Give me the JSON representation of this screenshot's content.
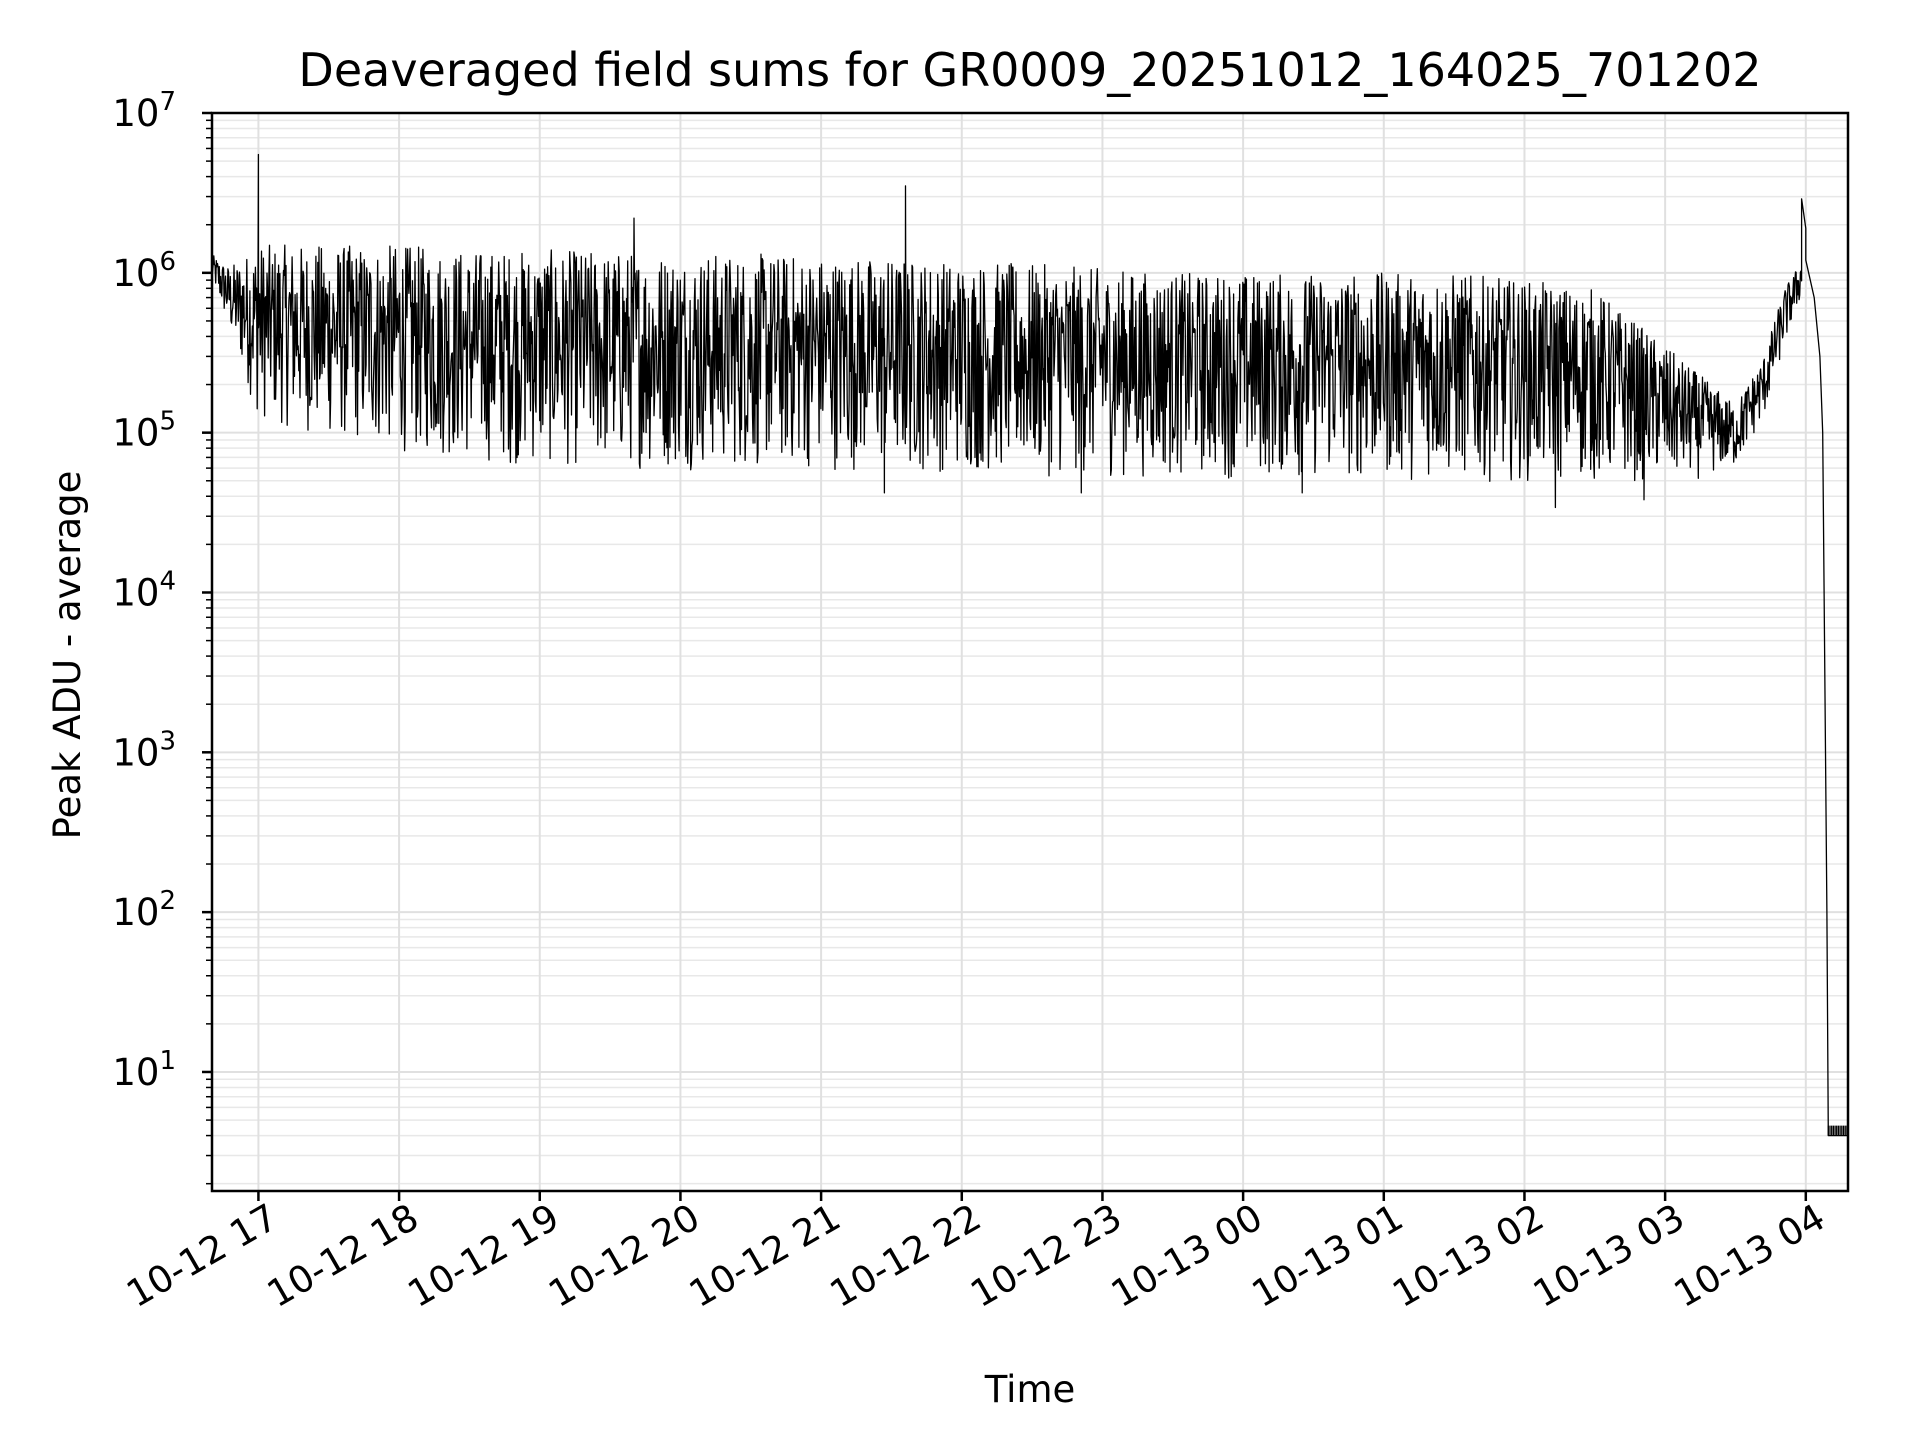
{
  "chart_data": {
    "type": "line",
    "title": "Deaveraged field sums for GR0009_20251012_164025_701202",
    "xlabel": "Time",
    "ylabel": "Peak ADU - average",
    "yscale": "log",
    "ylim": [
      1.8,
      10000000
    ],
    "xlim_hours": [
      16.67,
      28.3
    ],
    "grid": true,
    "line_color": "#000000",
    "y_ticks": [
      {
        "base": "10",
        "exp": "1",
        "value": 10
      },
      {
        "base": "10",
        "exp": "2",
        "value": 100
      },
      {
        "base": "10",
        "exp": "3",
        "value": 1000
      },
      {
        "base": "10",
        "exp": "4",
        "value": 10000
      },
      {
        "base": "10",
        "exp": "5",
        "value": 100000
      },
      {
        "base": "10",
        "exp": "6",
        "value": 1000000
      },
      {
        "base": "10",
        "exp": "7",
        "value": 10000000
      }
    ],
    "x_ticks": [
      {
        "label": "10-12 17",
        "hour": 17
      },
      {
        "label": "10-12 18",
        "hour": 18
      },
      {
        "label": "10-12 19",
        "hour": 19
      },
      {
        "label": "10-12 20",
        "hour": 20
      },
      {
        "label": "10-12 21",
        "hour": 21
      },
      {
        "label": "10-12 22",
        "hour": 22
      },
      {
        "label": "10-12 23",
        "hour": 23
      },
      {
        "label": "10-13 00",
        "hour": 24
      },
      {
        "label": "10-13 01",
        "hour": 25
      },
      {
        "label": "10-13 02",
        "hour": 26
      },
      {
        "label": "10-13 03",
        "hour": 27
      },
      {
        "label": "10-13 04",
        "hour": 28
      }
    ],
    "envelope": [
      {
        "hour": 16.67,
        "low": 900000,
        "high": 1300000
      },
      {
        "hour": 16.8,
        "low": 400000,
        "high": 1100000
      },
      {
        "hour": 17.0,
        "low": 120000,
        "high": 1500000
      },
      {
        "hour": 17.5,
        "low": 90000,
        "high": 1500000
      },
      {
        "hour": 18.0,
        "low": 75000,
        "high": 1500000
      },
      {
        "hour": 18.5,
        "low": 65000,
        "high": 1400000
      },
      {
        "hour": 19.0,
        "low": 60000,
        "high": 1400000
      },
      {
        "hour": 20.0,
        "low": 58000,
        "high": 1350000
      },
      {
        "hour": 21.0,
        "low": 58000,
        "high": 1300000
      },
      {
        "hour": 22.0,
        "low": 55000,
        "high": 1200000
      },
      {
        "hour": 22.8,
        "low": 52000,
        "high": 1100000
      },
      {
        "hour": 23.5,
        "low": 52000,
        "high": 1000000
      },
      {
        "hour": 24.5,
        "low": 50000,
        "high": 1000000
      },
      {
        "hour": 25.5,
        "low": 50000,
        "high": 1000000
      },
      {
        "hour": 26.5,
        "low": 48000,
        "high": 800000
      },
      {
        "hour": 27.2,
        "low": 50000,
        "high": 250000
      },
      {
        "hour": 27.5,
        "low": 60000,
        "high": 150000
      },
      {
        "hour": 27.7,
        "low": 120000,
        "high": 300000
      },
      {
        "hour": 27.85,
        "low": 350000,
        "high": 800000
      },
      {
        "hour": 27.97,
        "low": 700000,
        "high": 1200000
      }
    ],
    "spikes": [
      {
        "hour": 17.0,
        "value": 5500000
      },
      {
        "hour": 19.67,
        "value": 2200000
      },
      {
        "hour": 21.6,
        "value": 3500000
      },
      {
        "hour": 27.97,
        "value": 2900000
      },
      {
        "hour": 28.0,
        "value": 1900000
      }
    ],
    "dips": [
      {
        "hour": 26.22,
        "value": 34000
      },
      {
        "hour": 21.45,
        "value": 42000
      },
      {
        "hour": 22.85,
        "value": 42000
      },
      {
        "hour": 24.42,
        "value": 42000
      },
      {
        "hour": 26.85,
        "value": 38000
      }
    ],
    "decay": [
      {
        "hour": 28.0,
        "value": 1200000
      },
      {
        "hour": 28.06,
        "value": 700000
      },
      {
        "hour": 28.1,
        "value": 300000
      },
      {
        "hour": 28.12,
        "value": 100000
      },
      {
        "hour": 28.13,
        "value": 10000
      },
      {
        "hour": 28.14,
        "value": 1000
      },
      {
        "hour": 28.15,
        "value": 100
      },
      {
        "hour": 28.16,
        "value": 4
      },
      {
        "hour": 28.3,
        "value": 4
      }
    ]
  }
}
